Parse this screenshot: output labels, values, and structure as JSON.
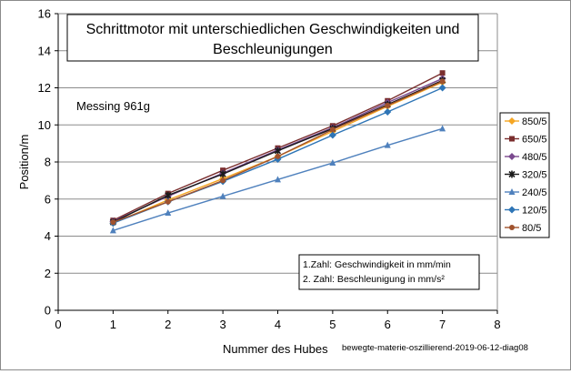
{
  "chart_data": {
    "type": "line",
    "title_lines": [
      "Schrittmotor mit unterschiedlichen Geschwindigkeiten und",
      "Beschleunigungen"
    ],
    "annotation": "Messing 961g",
    "xlabel": "Nummer des Hubes",
    "ylabel": "Position/m",
    "xlim": [
      0,
      8
    ],
    "ylim": [
      0,
      16
    ],
    "x_ticks": [
      "0",
      "1",
      "2",
      "3",
      "4",
      "5",
      "6",
      "7",
      "8"
    ],
    "y_ticks": [
      "0",
      "2",
      "4",
      "6",
      "8",
      "10",
      "12",
      "14",
      "16"
    ],
    "grid": "horizontal",
    "legend_position": "right",
    "note_lines": [
      "1.Zahl: Geschwindigkeit in mm/min",
      "2. Zahl: Beschleunigung in mm/s²"
    ],
    "source_label": "bewegte-materie-oszillierend-2019-06-12-diag08",
    "x": [
      1,
      2,
      3,
      4,
      5,
      6,
      7
    ],
    "series": [
      {
        "name": "850/5",
        "color": "#F5A623",
        "marker": "diamond",
        "values": [
          4.7,
          5.95,
          7.1,
          8.3,
          9.65,
          11.0,
          12.3
        ]
      },
      {
        "name": "650/5",
        "color": "#7A2E2E",
        "marker": "square",
        "values": [
          4.85,
          6.3,
          7.55,
          8.75,
          9.95,
          11.3,
          12.8
        ]
      },
      {
        "name": "480/5",
        "color": "#7B4A8F",
        "marker": "diamond",
        "values": [
          4.8,
          6.15,
          7.4,
          8.65,
          9.85,
          11.2,
          12.5
        ]
      },
      {
        "name": "320/5",
        "color": "#1A1A1A",
        "marker": "star",
        "values": [
          4.75,
          6.2,
          7.35,
          8.6,
          9.8,
          11.1,
          12.4
        ]
      },
      {
        "name": "240/5",
        "color": "#4F81BD",
        "marker": "triangle",
        "values": [
          4.3,
          5.25,
          6.15,
          7.05,
          7.95,
          8.9,
          9.8
        ]
      },
      {
        "name": "120/5",
        "color": "#2E75B6",
        "marker": "diamond",
        "values": [
          4.7,
          5.85,
          6.95,
          8.15,
          9.45,
          10.7,
          12.0
        ]
      },
      {
        "name": "80/5",
        "color": "#A0522D",
        "marker": "circle",
        "values": [
          4.75,
          5.85,
          7.0,
          8.3,
          9.75,
          11.05,
          12.35
        ]
      }
    ]
  }
}
